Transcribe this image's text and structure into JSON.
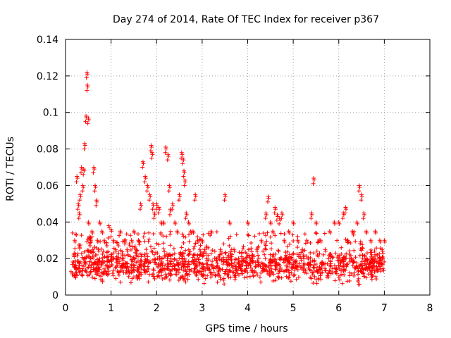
{
  "chart_data": {
    "type": "scatter",
    "title": "Day 274 of 2014, Rate Of TEC Index for receiver p367",
    "xlabel": "GPS time / hours",
    "ylabel": "ROTI / TECUs",
    "xlim": [
      0,
      8
    ],
    "ylim": [
      0,
      0.14
    ],
    "xticks": [
      0,
      1,
      2,
      3,
      4,
      5,
      6,
      7,
      8
    ],
    "xtick_labels": [
      "0",
      "1",
      "2",
      "3",
      "4",
      "5",
      "6",
      "7",
      "8"
    ],
    "yticks": [
      0,
      0.02,
      0.04,
      0.06,
      0.08,
      0.1,
      0.12,
      0.14
    ],
    "ytick_labels": [
      "0",
      "0.02",
      "0.04",
      "0.06",
      "0.08",
      "0.1",
      "0.12",
      "0.14"
    ],
    "grid": true,
    "marker": "+",
    "color": "#ff0000",
    "series": [
      {
        "name": "ROTI",
        "x": [
          0.15,
          0.18,
          0.2,
          0.22,
          0.25,
          0.28,
          0.3,
          0.32,
          0.35,
          0.38,
          0.4,
          0.42,
          0.45,
          0.47,
          0.48,
          0.5,
          0.5,
          0.52,
          0.53,
          0.55,
          0.58,
          0.6,
          0.62,
          0.65,
          0.68,
          0.7,
          0.72,
          0.75,
          0.8,
          0.85,
          0.9,
          0.95,
          1.0,
          1.05,
          1.1,
          1.15,
          1.2,
          1.25,
          1.3,
          1.35,
          1.4,
          1.45,
          1.5,
          1.55,
          1.6,
          1.65,
          1.7,
          1.75,
          1.8,
          1.85,
          1.88,
          1.9,
          1.92,
          1.95,
          2.0,
          2.05,
          2.1,
          2.15,
          2.2,
          2.25,
          2.28,
          2.3,
          2.35,
          2.4,
          2.45,
          2.5,
          2.55,
          2.58,
          2.6,
          2.62,
          2.65,
          2.7,
          2.75,
          2.8,
          2.85,
          2.9,
          2.95,
          3.0,
          3.05,
          3.1,
          3.2,
          3.3,
          3.4,
          3.5,
          3.6,
          3.7,
          3.8,
          3.9,
          4.0,
          4.1,
          4.2,
          4.3,
          4.4,
          4.45,
          4.5,
          4.55,
          4.6,
          4.65,
          4.7,
          4.75,
          4.8,
          4.9,
          5.0,
          5.1,
          5.2,
          5.3,
          5.4,
          5.45,
          5.5,
          5.6,
          5.7,
          5.8,
          5.9,
          6.0,
          6.1,
          6.15,
          6.2,
          6.3,
          6.4,
          6.45,
          6.5,
          6.55,
          6.6,
          6.7,
          6.8,
          6.9,
          6.95,
          7.0
        ],
        "y": [
          0.012,
          0.022,
          0.03,
          0.015,
          0.065,
          0.05,
          0.045,
          0.055,
          0.07,
          0.06,
          0.069,
          0.083,
          0.098,
          0.122,
          0.115,
          0.097,
          0.04,
          0.032,
          0.028,
          0.03,
          0.035,
          0.025,
          0.07,
          0.06,
          0.052,
          0.03,
          0.025,
          0.04,
          0.035,
          0.03,
          0.028,
          0.038,
          0.036,
          0.03,
          0.025,
          0.028,
          0.035,
          0.02,
          0.03,
          0.025,
          0.028,
          0.03,
          0.035,
          0.025,
          0.03,
          0.05,
          0.073,
          0.065,
          0.06,
          0.055,
          0.082,
          0.078,
          0.05,
          0.045,
          0.05,
          0.048,
          0.04,
          0.04,
          0.081,
          0.077,
          0.06,
          0.047,
          0.05,
          0.04,
          0.035,
          0.055,
          0.078,
          0.075,
          0.068,
          0.063,
          0.045,
          0.04,
          0.035,
          0.035,
          0.055,
          0.03,
          0.025,
          0.03,
          0.025,
          0.02,
          0.035,
          0.02,
          0.025,
          0.055,
          0.04,
          0.025,
          0.02,
          0.02,
          0.04,
          0.02,
          0.025,
          0.03,
          0.045,
          0.054,
          0.04,
          0.035,
          0.048,
          0.044,
          0.042,
          0.045,
          0.03,
          0.035,
          0.04,
          0.03,
          0.025,
          0.03,
          0.045,
          0.064,
          0.04,
          0.03,
          0.025,
          0.035,
          0.04,
          0.04,
          0.045,
          0.048,
          0.03,
          0.035,
          0.04,
          0.06,
          0.055,
          0.045,
          0.035,
          0.03,
          0.035,
          0.03,
          0.025,
          0.03
        ],
        "dense_band": {
          "x_range": [
            0.12,
            7.0
          ],
          "y_range": [
            0.002,
            0.035
          ],
          "description_values": "dense cluster of ROTI values mostly between 0.005 and 0.025 TECUs"
        }
      }
    ]
  }
}
